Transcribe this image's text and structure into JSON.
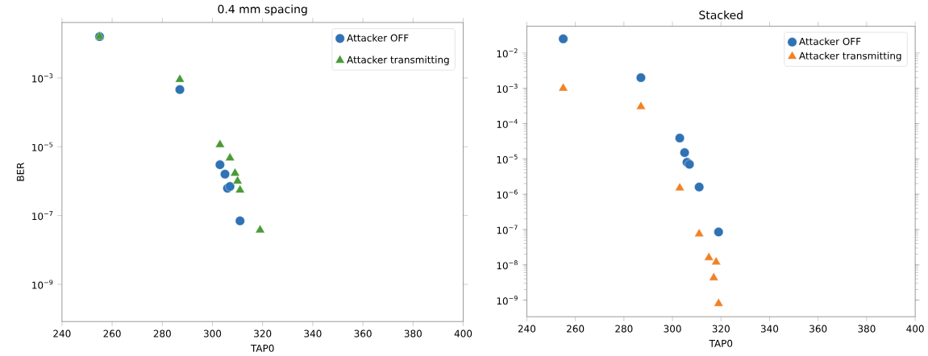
{
  "chart_data": [
    {
      "type": "scatter",
      "title": "0.4 mm spacing",
      "xlabel": "TAP0",
      "ylabel": "BER",
      "log": "y",
      "legend": "top right",
      "xlim": [
        240,
        400
      ],
      "xticks": [
        240,
        260,
        280,
        300,
        320,
        340,
        360,
        380,
        400
      ],
      "ylim": [
        8.3e-11,
        0.041
      ],
      "yticks": [
        {
          "value": 1e-09,
          "label": "10$^{−9}$"
        },
        {
          "value": 1e-07,
          "label": "10$^{−7}$"
        },
        {
          "value": 1e-05,
          "label": "10$^{−5}$"
        },
        {
          "value": 0.001,
          "label": "10$^{−3}$"
        }
      ],
      "series": [
        {
          "name": "Attacker OFF",
          "color": "#2f72b5",
          "marker": "circle",
          "x": [
            255,
            287,
            303,
            305,
            306,
            307,
            311
          ],
          "values": [
            0.016,
            0.00046,
            3e-06,
            1.6e-06,
            6.2e-07,
            7e-07,
            7e-08
          ]
        },
        {
          "name": "Attacker transmitting",
          "color": "#4a9a36",
          "marker": "triangle",
          "x": [
            255,
            287,
            303,
            307,
            309,
            310,
            311,
            319
          ],
          "values": [
            0.016,
            0.0009,
            1.15e-05,
            4.7e-06,
            1.7e-06,
            1e-06,
            5.5e-07,
            3.8e-08
          ]
        }
      ]
    },
    {
      "type": "scatter",
      "title": "Stacked",
      "xlabel": "TAP0",
      "log": "y",
      "legend": "top right",
      "xlim": [
        240,
        400
      ],
      "xticks": [
        240,
        260,
        280,
        300,
        320,
        340,
        360,
        380,
        400
      ],
      "ylim": [
        3.4e-10,
        0.057
      ],
      "yticks": [
        {
          "value": 1e-09,
          "label": "10$^{−9}$"
        },
        {
          "value": 1e-08,
          "label": "10$^{−8}$"
        },
        {
          "value": 1e-07,
          "label": "10$^{−7}$"
        },
        {
          "value": 1e-06,
          "label": "10$^{−6}$"
        },
        {
          "value": 1e-05,
          "label": "10$^{−5}$"
        },
        {
          "value": 0.0001,
          "label": "10$^{−4}$"
        },
        {
          "value": 0.001,
          "label": "10$^{−3}$"
        },
        {
          "value": 0.01,
          "label": "10$^{−2}$"
        }
      ],
      "series": [
        {
          "name": "Attacker OFF",
          "color": "#2f72b5",
          "marker": "circle",
          "x": [
            255,
            287,
            303,
            305,
            306,
            307,
            311,
            319
          ],
          "values": [
            0.025,
            0.002,
            3.9e-05,
            1.5e-05,
            8e-06,
            7e-06,
            1.6e-06,
            8.5e-08
          ]
        },
        {
          "name": "Attacker transmitting",
          "color": "#f08226",
          "marker": "triangle",
          "x": [
            255,
            287,
            303,
            311,
            315,
            318,
            317,
            319
          ],
          "values": [
            0.001,
            0.0003,
            1.5e-06,
            7.5e-08,
            1.6e-08,
            1.2e-08,
            4.3e-09,
            8e-10
          ]
        }
      ]
    }
  ]
}
